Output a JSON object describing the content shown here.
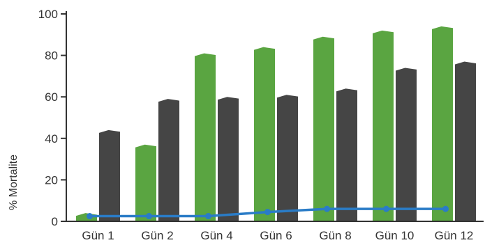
{
  "chart_data": {
    "type": "bar",
    "title": "",
    "xlabel": "",
    "ylabel": "% Mortalite",
    "ylim": [
      0,
      100
    ],
    "yticks": [
      "0",
      "20",
      "40",
      "60",
      "80",
      "100"
    ],
    "categories": [
      "Gün 1",
      "Gün 2",
      "Gün 4",
      "Gün 6",
      "Gün 8",
      "Gün 10",
      "Gün 12"
    ],
    "series": [
      {
        "type": "bar",
        "color": "#5aa541",
        "values": [
          4,
          37,
          81,
          84,
          89,
          92,
          94
        ]
      },
      {
        "type": "bar",
        "color": "#454545",
        "values": [
          44,
          59,
          60,
          61,
          64,
          74,
          77
        ]
      },
      {
        "type": "line",
        "color": "#2a7cc7",
        "values": [
          2.5,
          2.5,
          2.5,
          4.5,
          6,
          6,
          6
        ]
      }
    ],
    "grid": false,
    "legend": "none"
  }
}
